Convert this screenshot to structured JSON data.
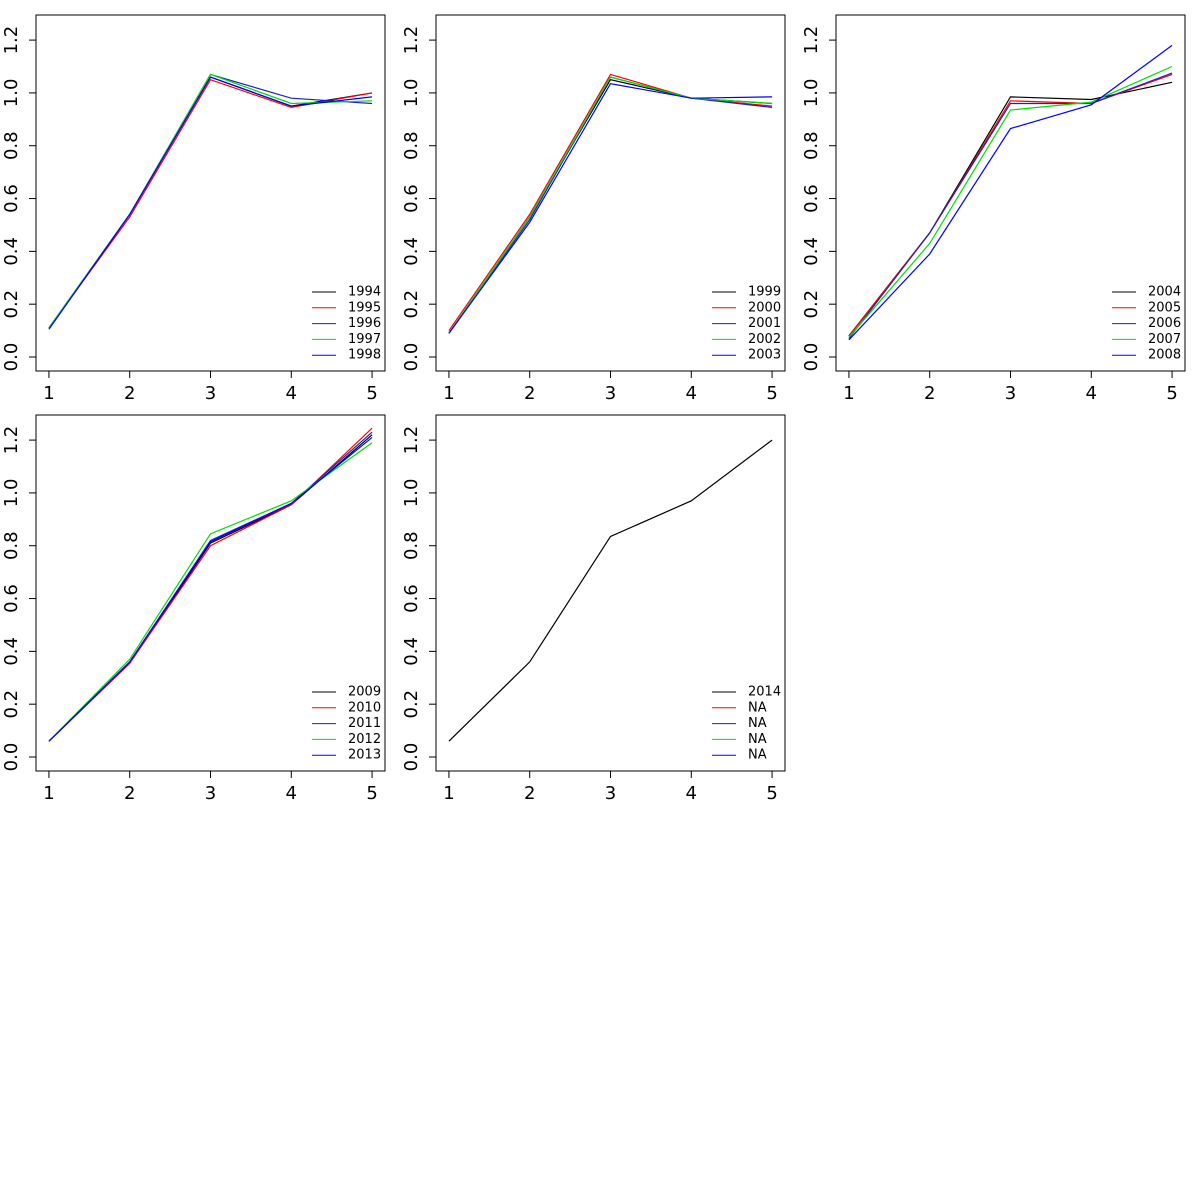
{
  "chart_data": [
    {
      "type": "line",
      "x": [
        1,
        2,
        3,
        4,
        5
      ],
      "xlim": [
        0.84,
        5.16
      ],
      "xticks": [
        1,
        2,
        3,
        4,
        5
      ],
      "ylim": [
        -0.053,
        1.295
      ],
      "yticks": [
        {
          "value": 0,
          "label": "0.0"
        },
        0.2,
        0.4,
        0.6,
        0.8,
        {
          "value": 1,
          "label": "1.0"
        },
        1.2
      ],
      "legend": "bottom-right",
      "series": [
        {
          "name": "1994",
          "color": "#000000",
          "values": [
            0.11,
            0.54,
            1.06,
            0.95,
            1.0
          ]
        },
        {
          "name": "1995",
          "color": "#ff0000",
          "values": [
            0.11,
            0.53,
            1.05,
            0.945,
            1.0
          ]
        },
        {
          "name": "1996",
          "color": "#2020c0",
          "values": [
            0.11,
            0.54,
            1.07,
            0.98,
            0.96
          ]
        },
        {
          "name": "1997",
          "color": "#00dd00",
          "values": [
            0.11,
            0.54,
            1.07,
            0.96,
            0.97
          ]
        },
        {
          "name": "1998",
          "color": "#0000ff",
          "values": [
            0.105,
            0.54,
            1.06,
            0.95,
            0.985
          ]
        }
      ]
    },
    {
      "type": "line",
      "x": [
        1,
        2,
        3,
        4,
        5
      ],
      "xlim": [
        0.84,
        5.16
      ],
      "xticks": [
        1,
        2,
        3,
        4,
        5
      ],
      "ylim": [
        -0.053,
        1.295
      ],
      "yticks": [
        {
          "value": 0,
          "label": "0.0"
        },
        0.2,
        0.4,
        0.6,
        0.8,
        {
          "value": 1,
          "label": "1.0"
        },
        1.2
      ],
      "legend": "bottom-right",
      "series": [
        {
          "name": "1999",
          "color": "#000000",
          "values": [
            0.09,
            0.53,
            1.05,
            0.98,
            0.96
          ]
        },
        {
          "name": "2000",
          "color": "#ff0000",
          "values": [
            0.1,
            0.54,
            1.07,
            0.98,
            0.95
          ]
        },
        {
          "name": "2001",
          "color": "#2020c0",
          "values": [
            0.09,
            0.52,
            1.06,
            0.98,
            0.945
          ]
        },
        {
          "name": "2002",
          "color": "#00dd00",
          "values": [
            0.09,
            0.53,
            1.06,
            0.98,
            0.96
          ]
        },
        {
          "name": "2003",
          "color": "#0000ff",
          "values": [
            0.09,
            0.51,
            1.035,
            0.98,
            0.985
          ]
        }
      ]
    },
    {
      "type": "line",
      "x": [
        1,
        2,
        3,
        4,
        5
      ],
      "xlim": [
        0.84,
        5.16
      ],
      "xticks": [
        1,
        2,
        3,
        4,
        5
      ],
      "ylim": [
        -0.053,
        1.295
      ],
      "yticks": [
        {
          "value": 0,
          "label": "0.0"
        },
        0.2,
        0.4,
        0.6,
        0.8,
        {
          "value": 1,
          "label": "1.0"
        },
        1.2
      ],
      "legend": "bottom-right",
      "series": [
        {
          "name": "2004",
          "color": "#000000",
          "values": [
            0.08,
            0.47,
            0.985,
            0.975,
            1.04
          ]
        },
        {
          "name": "2005",
          "color": "#ff0000",
          "values": [
            0.08,
            0.47,
            0.97,
            0.96,
            1.07
          ]
        },
        {
          "name": "2006",
          "color": "#2020c0",
          "values": [
            0.07,
            0.47,
            0.96,
            0.96,
            1.075
          ]
        },
        {
          "name": "2007",
          "color": "#00dd00",
          "values": [
            0.075,
            0.43,
            0.935,
            0.965,
            1.1
          ]
        },
        {
          "name": "2008",
          "color": "#0000ff",
          "values": [
            0.065,
            0.39,
            0.865,
            0.955,
            1.18
          ]
        }
      ]
    },
    {
      "type": "line",
      "x": [
        1,
        2,
        3,
        4,
        5
      ],
      "xlim": [
        0.84,
        5.16
      ],
      "xticks": [
        1,
        2,
        3,
        4,
        5
      ],
      "ylim": [
        -0.053,
        1.295
      ],
      "yticks": [
        {
          "value": 0,
          "label": "0.0"
        },
        0.2,
        0.4,
        0.6,
        0.8,
        {
          "value": 1,
          "label": "1.0"
        },
        1.2
      ],
      "legend": "bottom-right",
      "series": [
        {
          "name": "2009",
          "color": "#000000",
          "values": [
            0.06,
            0.355,
            0.81,
            0.955,
            1.22
          ]
        },
        {
          "name": "2010",
          "color": "#ff0000",
          "values": [
            0.06,
            0.355,
            0.8,
            0.955,
            1.245
          ]
        },
        {
          "name": "2011",
          "color": "#2020c0",
          "values": [
            0.06,
            0.36,
            0.82,
            0.96,
            1.23
          ]
        },
        {
          "name": "2012",
          "color": "#00dd00",
          "values": [
            0.06,
            0.37,
            0.845,
            0.97,
            1.19
          ]
        },
        {
          "name": "2013",
          "color": "#0000ff",
          "values": [
            0.06,
            0.36,
            0.815,
            0.96,
            1.21
          ]
        }
      ]
    },
    {
      "type": "line",
      "x": [
        1,
        2,
        3,
        4,
        5
      ],
      "xlim": [
        0.84,
        5.16
      ],
      "xticks": [
        1,
        2,
        3,
        4,
        5
      ],
      "ylim": [
        -0.053,
        1.295
      ],
      "yticks": [
        {
          "value": 0,
          "label": "0.0"
        },
        0.2,
        0.4,
        0.6,
        0.8,
        {
          "value": 1,
          "label": "1.0"
        },
        1.2
      ],
      "legend": "bottom-right",
      "series": [
        {
          "name": "2014",
          "color": "#000000",
          "values": [
            0.06,
            0.36,
            0.835,
            0.97,
            1.2
          ]
        },
        {
          "name": "NA",
          "color": "#ff0000",
          "values": [
            null,
            null,
            null,
            null,
            null
          ]
        },
        {
          "name": "NA",
          "color": "#2020c0",
          "values": [
            null,
            null,
            null,
            null,
            null
          ]
        },
        {
          "name": "NA",
          "color": "#00dd00",
          "values": [
            null,
            null,
            null,
            null,
            null
          ]
        },
        {
          "name": "NA",
          "color": "#0000ff",
          "values": [
            null,
            null,
            null,
            null,
            null
          ]
        }
      ]
    }
  ]
}
